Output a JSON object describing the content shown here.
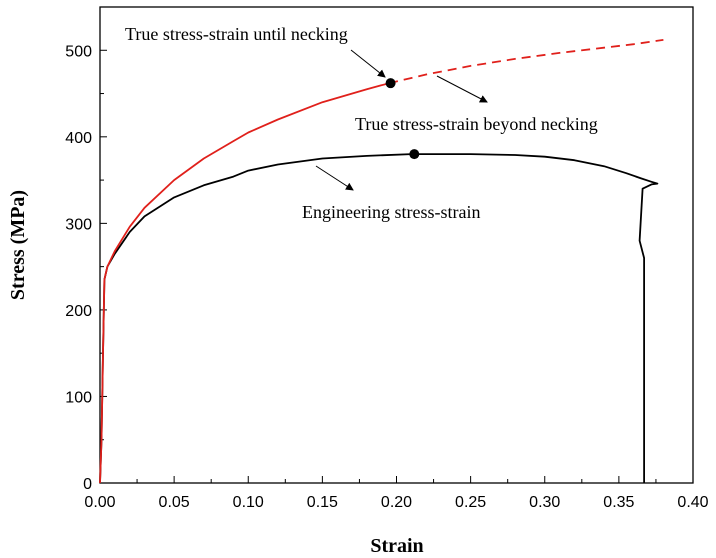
{
  "chart_data": {
    "type": "line",
    "title": "",
    "xlabel": "Strain",
    "ylabel": "Stress (MPa)",
    "xlim": [
      0,
      0.4
    ],
    "ylim": [
      0,
      550
    ],
    "xticks": [
      "0.00",
      "0.05",
      "0.10",
      "0.15",
      "0.20",
      "0.25",
      "0.30",
      "0.35",
      "0.40"
    ],
    "yticks": [
      "0",
      "100",
      "200",
      "300",
      "400",
      "500"
    ],
    "grid": false,
    "series": [
      {
        "name": "Engineering stress-strain",
        "color": "#000000",
        "style": "solid",
        "x": [
          0,
          0.001,
          0.002,
          0.003,
          0.005,
          0.01,
          0.02,
          0.03,
          0.05,
          0.07,
          0.09,
          0.1,
          0.12,
          0.15,
          0.18,
          0.21,
          0.25,
          0.28,
          0.3,
          0.32,
          0.34,
          0.355,
          0.365,
          0.372,
          0.376,
          0.372,
          0.366,
          0.364,
          0.367,
          0.367
        ],
        "y": [
          0,
          50,
          150,
          235,
          250,
          265,
          290,
          308,
          330,
          344,
          354,
          361,
          368,
          375,
          378,
          380,
          380,
          379,
          377,
          373,
          366,
          358,
          352,
          348,
          346,
          345,
          340,
          280,
          260,
          0
        ]
      },
      {
        "name": "True stress-strain until necking",
        "color": "#e0201b",
        "style": "solid",
        "x": [
          0,
          0.001,
          0.002,
          0.003,
          0.005,
          0.01,
          0.02,
          0.03,
          0.05,
          0.07,
          0.09,
          0.1,
          0.12,
          0.15,
          0.18,
          0.195
        ],
        "y": [
          0,
          50,
          150,
          235,
          250,
          268,
          296,
          318,
          350,
          375,
          395,
          405,
          420,
          440,
          455,
          462
        ]
      },
      {
        "name": "True stress-strain beyond necking",
        "color": "#e0201b",
        "style": "dashed",
        "x": [
          0.195,
          0.22,
          0.25,
          0.28,
          0.31,
          0.34,
          0.36,
          0.38
        ],
        "y": [
          462,
          472,
          482,
          490,
          497,
          503,
          507,
          512
        ]
      }
    ],
    "markers": [
      {
        "x": 0.196,
        "y": 462
      },
      {
        "x": 0.212,
        "y": 380
      }
    ],
    "annotations": [
      {
        "text": "True stress-strain until necking"
      },
      {
        "text": "True stress-strain beyond necking"
      },
      {
        "text": "Engineering stress-strain"
      }
    ]
  }
}
